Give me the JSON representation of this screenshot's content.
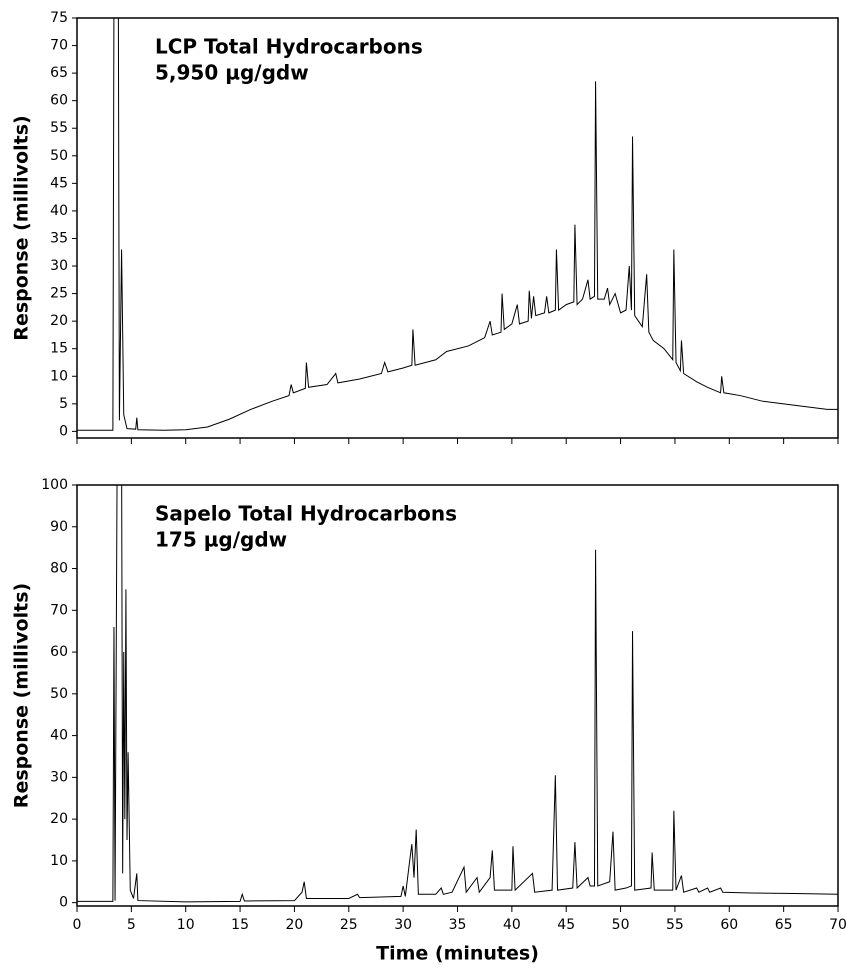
{
  "chart_data": [
    {
      "type": "line",
      "color": "#000000",
      "ylabel": "Response (millivolts)",
      "annotations": [
        "LCP Total Hydrocarbons",
        "5,950 µg/gdw"
      ],
      "xlim": [
        0,
        70
      ],
      "xticks": [
        0,
        5,
        10,
        15,
        20,
        25,
        30,
        35,
        40,
        45,
        50,
        55,
        60,
        65,
        70
      ],
      "ylim": [
        -1.2,
        75
      ],
      "yticks": [
        0,
        5,
        10,
        15,
        20,
        25,
        30,
        35,
        40,
        45,
        50,
        55,
        60,
        65,
        70,
        75
      ],
      "x": [
        0,
        3.3,
        3.4,
        3.8,
        3.9,
        4.1,
        4.3,
        4.6,
        5.4,
        5.5,
        5.6,
        8,
        10,
        12,
        14,
        16,
        18,
        19.5,
        19.7,
        19.9,
        21,
        21.1,
        21.3,
        23,
        23.8,
        24,
        26,
        28,
        28.3,
        28.6,
        30,
        30.8,
        30.9,
        31.1,
        33,
        34,
        36,
        37.5,
        38,
        38.2,
        39,
        39.1,
        39.3,
        40,
        40.5,
        40.7,
        41.5,
        41.6,
        41.8,
        42,
        42.2,
        43,
        43.2,
        43.4,
        44,
        44.1,
        44.3,
        45,
        45.7,
        45.8,
        46,
        46.5,
        47,
        47.2,
        47.6,
        47.7,
        47.9,
        48.5,
        48.8,
        49,
        49.5,
        50,
        50.5,
        50.8,
        51,
        51.1,
        51.3,
        52,
        52.4,
        52.6,
        53,
        54,
        54.8,
        54.9,
        55.1,
        55.5,
        55.6,
        55.8,
        57,
        58,
        59.2,
        59.3,
        59.5,
        61,
        63,
        65,
        67,
        69,
        70
      ],
      "values": [
        0.2,
        0.2,
        80,
        80,
        2,
        33,
        3,
        0.5,
        0.4,
        2.5,
        0.3,
        0.2,
        0.3,
        0.8,
        2.2,
        4,
        5.5,
        6.5,
        8.5,
        7,
        7.8,
        12.5,
        8,
        8.5,
        10.5,
        8.8,
        9.5,
        10.5,
        12.5,
        10.8,
        11.5,
        12,
        18.5,
        12,
        13,
        14.5,
        15.5,
        17,
        20,
        17.5,
        18,
        25,
        18.5,
        19.5,
        23,
        19.5,
        20,
        25.5,
        20.5,
        24.5,
        21,
        21.5,
        24.5,
        21.5,
        22,
        33,
        22,
        23,
        23.5,
        37.5,
        23,
        24,
        27.5,
        24,
        24.5,
        63.5,
        24,
        24,
        26,
        23,
        25,
        21.5,
        22,
        30,
        22,
        53.5,
        21,
        19,
        28.5,
        18,
        16.5,
        15,
        13,
        33,
        12.5,
        11,
        16.5,
        10.5,
        9,
        8,
        7,
        10,
        7,
        6.5,
        5.5,
        5,
        4.5,
        4,
        4
      ]
    },
    {
      "type": "line",
      "color": "#000000",
      "ylabel": "Response (millivolts)",
      "xlabel": "Time (minutes)",
      "annotations": [
        "Sapelo Total Hydrocarbons",
        "175 µg/gdw"
      ],
      "xlim": [
        0,
        70
      ],
      "xticks": [
        0,
        5,
        10,
        15,
        20,
        25,
        30,
        35,
        40,
        45,
        50,
        55,
        60,
        65,
        70
      ],
      "ylim": [
        -0.8,
        100
      ],
      "yticks": [
        0,
        10,
        20,
        30,
        40,
        50,
        60,
        70,
        80,
        90,
        100
      ],
      "x": [
        0,
        3.3,
        3.4,
        3.5,
        3.7,
        4.1,
        4.2,
        4.3,
        4.4,
        4.5,
        4.6,
        4.7,
        4.9,
        5.2,
        5.5,
        5.6,
        10,
        15,
        15.2,
        15.4,
        20,
        20.7,
        20.9,
        21.1,
        25,
        25.8,
        26,
        29.8,
        30,
        30.2,
        30.6,
        30.8,
        31,
        31.2,
        31.4,
        33,
        33.5,
        33.7,
        34.5,
        35.6,
        35.8,
        36.8,
        37,
        38,
        38.2,
        38.4,
        40,
        40.1,
        40.3,
        41.9,
        42.1,
        43.7,
        44,
        44.2,
        45.6,
        45.8,
        46,
        47,
        47.2,
        47.6,
        47.7,
        47.9,
        49,
        49.3,
        49.5,
        50.5,
        51,
        51.1,
        51.3,
        52.8,
        52.9,
        53.1,
        54.8,
        54.9,
        55.1,
        55.6,
        55.8,
        57,
        57.2,
        58,
        58.2,
        59.2,
        59.4,
        62,
        66,
        70
      ],
      "values": [
        0.3,
        0.3,
        66,
        0.5,
        110,
        110,
        7,
        60,
        20,
        75,
        15,
        36,
        3,
        1,
        7,
        0.5,
        0.2,
        0.3,
        2,
        0.4,
        0.5,
        2.5,
        5,
        1,
        1,
        2,
        1.2,
        1.5,
        4,
        1.5,
        10,
        14,
        6,
        17.5,
        2,
        2,
        3.5,
        2,
        2.5,
        8.5,
        2.5,
        6,
        2.5,
        6,
        12.5,
        3,
        3,
        13.5,
        3,
        7,
        2.5,
        3,
        30.5,
        3,
        3.5,
        14.5,
        3.5,
        6,
        4,
        4,
        84.5,
        4,
        5,
        17,
        3,
        3.5,
        4,
        65,
        3,
        3.5,
        12,
        3,
        3,
        22,
        3,
        6.5,
        2.5,
        3.5,
        2.5,
        3.5,
        2.5,
        3.5,
        2.5,
        2.3,
        2.2,
        2
      ]
    }
  ]
}
